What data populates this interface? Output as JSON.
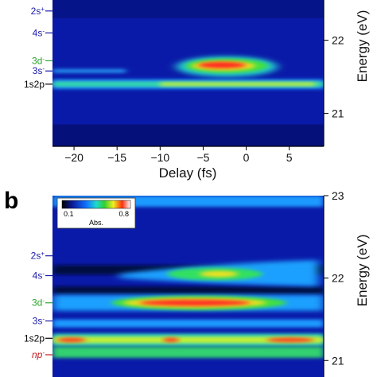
{
  "chart_data": [
    {
      "type": "heatmap",
      "panel": "",
      "xlabel": "Delay (fs)",
      "ylabel": "Energy (eV)",
      "xlim": [
        -22.5,
        9
      ],
      "ylim": [
        20.55,
        22.55
      ],
      "xticks": [
        -20,
        -15,
        -10,
        -5,
        0,
        5
      ],
      "yticks": [
        21,
        22
      ],
      "state_labels": [
        {
          "text": "2s",
          "sup": "+",
          "energy": 22.4,
          "color": "#1a1aa8"
        },
        {
          "text": "4s",
          "sup": "-",
          "energy": 22.1,
          "color": "#1a1aa8"
        },
        {
          "text": "3d",
          "sup": "-",
          "energy": 21.72,
          "color": "#2aa52a"
        },
        {
          "text": "3s",
          "sup": "-",
          "energy": 21.58,
          "color": "#1a1aa8"
        },
        {
          "text": "1s2p",
          "sup": "",
          "energy": 21.4,
          "color": "#000000"
        }
      ],
      "features": [
        {
          "name": "1s2p line",
          "energy": 21.4,
          "delay_start": -22.5,
          "delay_end": 9,
          "intensity": 0.6
        },
        {
          "name": "3s line",
          "energy": 21.58,
          "delay_start": -22.5,
          "delay_end": -14,
          "intensity": 0.4
        },
        {
          "name": "3s/3d blob",
          "energy": 21.65,
          "delay_start": -9,
          "delay_end": 3,
          "intensity": 0.8
        }
      ]
    },
    {
      "type": "heatmap",
      "panel": "b",
      "xlabel": "",
      "ylabel": "Energy (eV)",
      "ylim": [
        20.8,
        23.0
      ],
      "yticks": [
        21,
        22,
        23
      ],
      "colorbar": {
        "min_label": "0.1",
        "max_label": "0.8",
        "label": "Abs."
      },
      "state_labels": [
        {
          "text": "2s",
          "sup": "+",
          "energy": 22.27,
          "color": "#1a1aa8"
        },
        {
          "text": "4s",
          "sup": "-",
          "energy": 22.03,
          "color": "#1a1aa8"
        },
        {
          "text": "3d",
          "sup": "-",
          "energy": 21.7,
          "color": "#2aa52a"
        },
        {
          "text": "3s",
          "sup": "-",
          "energy": 21.48,
          "color": "#1a1aa8"
        },
        {
          "text": "1s2p",
          "sup": "",
          "energy": 21.27,
          "color": "#000000"
        },
        {
          "text": "np",
          "sup": "-",
          "energy": 21.07,
          "color": "#c41a1a",
          "italic": true
        }
      ],
      "features": [
        {
          "name": "top band",
          "energy": 22.95,
          "intensity": 0.5
        },
        {
          "name": "4s/2s band",
          "energy": 22.08,
          "intensity": 0.6
        },
        {
          "name": "3d band",
          "energy": 21.7,
          "intensity": 0.85
        },
        {
          "name": "3s band",
          "energy": 21.45,
          "intensity": 0.5
        },
        {
          "name": "1s2p band",
          "energy": 21.25,
          "intensity": 0.8
        },
        {
          "name": "np band",
          "energy": 21.1,
          "intensity": 0.45
        }
      ]
    }
  ]
}
